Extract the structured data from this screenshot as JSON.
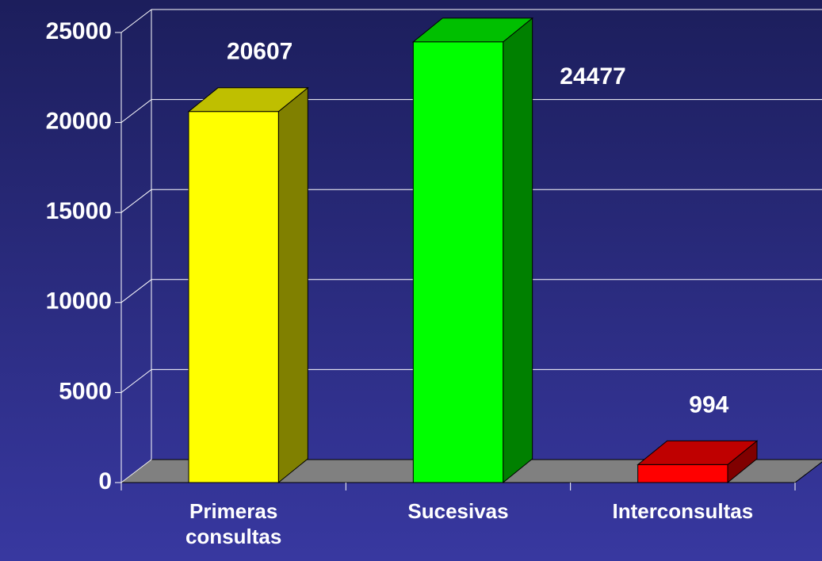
{
  "chart_data": {
    "type": "bar",
    "categories": [
      "Primeras consultas",
      "Sucesivas",
      "Interconsultas"
    ],
    "values": [
      20607,
      24477,
      994
    ],
    "colors": [
      "#ffff00",
      "#00ff00",
      "#ff0000"
    ],
    "ylim": [
      0,
      25000
    ],
    "yticks": [
      0,
      5000,
      10000,
      15000,
      20000,
      25000
    ],
    "grid": true
  }
}
